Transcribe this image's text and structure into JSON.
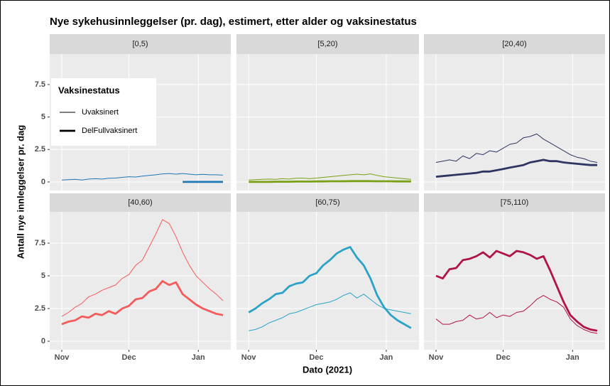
{
  "figure": {
    "title": "Nye sykehusinnleggelser (pr. dag), estimert, etter alder og vaksinestatus",
    "x_label": "Dato (2021)",
    "y_label": "Antall nye innleggelser pr. dag",
    "legend_title": "Vaksinestatus"
  },
  "chart_data": [
    {
      "type": "line",
      "title": "[0,5)",
      "x": [
        0,
        3,
        6,
        9,
        12,
        15,
        18,
        21,
        24,
        27,
        30,
        33,
        36,
        39,
        42,
        45,
        48,
        51,
        54,
        57,
        60,
        63,
        66,
        69,
        72
      ],
      "xlim": [
        -5.4,
        75.5
      ],
      "xticks": [
        {
          "value": 0,
          "label": "Nov"
        },
        {
          "value": 30,
          "label": "Dec"
        },
        {
          "value": 61,
          "label": "Jan"
        }
      ],
      "ylim": [
        -0.66,
        9.85
      ],
      "yticks": [
        0,
        2.5,
        5,
        7.5
      ],
      "grid": true,
      "series": [
        {
          "name": "Uvaksinert",
          "color": "#1f78b4",
          "values": [
            0.15,
            0.18,
            0.2,
            0.15,
            0.22,
            0.25,
            0.22,
            0.28,
            0.3,
            0.35,
            0.4,
            0.38,
            0.45,
            0.5,
            0.55,
            0.62,
            0.65,
            0.6,
            0.65,
            0.6,
            0.55,
            0.58,
            0.55,
            0.55,
            0.52
          ]
        },
        {
          "name": "DelFullvaksinert",
          "color": "#1f78b4",
          "values": [
            null,
            null,
            null,
            null,
            null,
            null,
            null,
            null,
            null,
            null,
            null,
            null,
            null,
            null,
            null,
            null,
            null,
            null,
            0,
            0,
            0,
            0,
            0,
            0,
            0
          ]
        }
      ]
    },
    {
      "type": "line",
      "title": "[5,20)",
      "x": [
        0,
        3,
        6,
        9,
        12,
        15,
        18,
        21,
        24,
        27,
        30,
        33,
        36,
        39,
        42,
        45,
        48,
        51,
        54,
        57,
        60,
        63,
        66,
        69,
        72
      ],
      "xlim": [
        -5.4,
        75.5
      ],
      "xticks": [
        {
          "value": 0,
          "label": "Nov"
        },
        {
          "value": 30,
          "label": "Dec"
        },
        {
          "value": 61,
          "label": "Jan"
        }
      ],
      "ylim": [
        -0.66,
        9.85
      ],
      "yticks": [
        0,
        2.5,
        5,
        7.5
      ],
      "grid": true,
      "series": [
        {
          "name": "Uvaksinert",
          "color": "#7aa116",
          "values": [
            0.15,
            0.18,
            0.2,
            0.22,
            0.2,
            0.25,
            0.22,
            0.28,
            0.3,
            0.25,
            0.3,
            0.35,
            0.4,
            0.45,
            0.5,
            0.55,
            0.6,
            0.55,
            0.62,
            0.5,
            0.4,
            0.35,
            0.3,
            0.25,
            0.2
          ]
        },
        {
          "name": "DelFullvaksinert",
          "color": "#7aa116",
          "values": [
            0,
            0,
            0,
            0,
            0.02,
            0.02,
            0.02,
            0.03,
            0.03,
            0.03,
            0.04,
            0.04,
            0.05,
            0.05,
            0.05,
            0.06,
            0.06,
            0.06,
            0.06,
            0.05,
            0.05,
            0.05,
            0.04,
            0.04,
            0.04
          ]
        }
      ]
    },
    {
      "type": "line",
      "title": "[20,40)",
      "x": [
        0,
        3,
        6,
        9,
        12,
        15,
        18,
        21,
        24,
        27,
        30,
        33,
        36,
        39,
        42,
        45,
        48,
        51,
        54,
        57,
        60,
        63,
        66,
        69,
        72
      ],
      "xlim": [
        -5.4,
        75.5
      ],
      "xticks": [
        {
          "value": 0,
          "label": "Nov"
        },
        {
          "value": 30,
          "label": "Dec"
        },
        {
          "value": 61,
          "label": "Jan"
        }
      ],
      "ylim": [
        -0.66,
        9.85
      ],
      "yticks": [
        0,
        2.5,
        5,
        7.5
      ],
      "grid": true,
      "series": [
        {
          "name": "Uvaksinert",
          "color": "#2e3561",
          "values": [
            1.5,
            1.6,
            1.7,
            1.6,
            2.0,
            1.8,
            2.2,
            2.1,
            2.4,
            2.3,
            2.6,
            2.9,
            3.0,
            3.4,
            3.5,
            3.7,
            3.3,
            3.0,
            2.7,
            2.4,
            2.1,
            1.9,
            1.8,
            1.6,
            1.5
          ]
        },
        {
          "name": "DelFullvaksinert",
          "color": "#2e3561",
          "values": [
            0.4,
            0.45,
            0.5,
            0.55,
            0.6,
            0.65,
            0.7,
            0.8,
            0.8,
            0.9,
            1.0,
            1.1,
            1.2,
            1.3,
            1.5,
            1.6,
            1.7,
            1.6,
            1.6,
            1.5,
            1.45,
            1.4,
            1.35,
            1.3,
            1.3
          ]
        }
      ]
    },
    {
      "type": "line",
      "title": "[40,60)",
      "x": [
        0,
        3,
        6,
        9,
        12,
        15,
        18,
        21,
        24,
        27,
        30,
        33,
        36,
        39,
        42,
        45,
        48,
        51,
        54,
        57,
        60,
        63,
        66,
        69,
        72
      ],
      "xlim": [
        -5.4,
        75.5
      ],
      "xticks": [
        {
          "value": 0,
          "label": "Nov"
        },
        {
          "value": 30,
          "label": "Dec"
        },
        {
          "value": 61,
          "label": "Jan"
        }
      ],
      "ylim": [
        -0.65,
        9.89
      ],
      "yticks": [
        0,
        2.5,
        5,
        7.5
      ],
      "grid": true,
      "series": [
        {
          "name": "Uvaksinert",
          "color": "#f45b5b",
          "values": [
            1.9,
            2.2,
            2.6,
            2.9,
            3.4,
            3.6,
            3.9,
            4.1,
            4.3,
            4.8,
            5.1,
            5.8,
            6.2,
            7.2,
            8.2,
            9.3,
            9.0,
            8.0,
            6.8,
            5.8,
            5.0,
            4.5,
            4.0,
            3.6,
            3.1
          ]
        },
        {
          "name": "DelFullvaksinert",
          "color": "#f45b5b",
          "values": [
            1.3,
            1.5,
            1.6,
            1.9,
            1.8,
            2.1,
            2.0,
            2.3,
            2.1,
            2.5,
            2.7,
            3.2,
            3.3,
            3.8,
            4.0,
            4.6,
            4.3,
            4.5,
            3.6,
            3.2,
            2.8,
            2.5,
            2.3,
            2.1,
            2.0
          ]
        }
      ]
    },
    {
      "type": "line",
      "title": "[60,75)",
      "x": [
        0,
        3,
        6,
        9,
        12,
        15,
        18,
        21,
        24,
        27,
        30,
        33,
        36,
        39,
        42,
        45,
        48,
        51,
        54,
        57,
        60,
        63,
        66,
        69,
        72
      ],
      "xlim": [
        -5.4,
        75.5
      ],
      "xticks": [
        {
          "value": 0,
          "label": "Nov"
        },
        {
          "value": 30,
          "label": "Dec"
        },
        {
          "value": 61,
          "label": "Jan"
        }
      ],
      "ylim": [
        -0.65,
        9.89
      ],
      "yticks": [
        0,
        2.5,
        5,
        7.5
      ],
      "grid": true,
      "series": [
        {
          "name": "Uvaksinert",
          "color": "#2aa3c7",
          "values": [
            0.8,
            0.9,
            1.1,
            1.4,
            1.6,
            1.8,
            2.1,
            2.2,
            2.4,
            2.6,
            2.8,
            2.9,
            3.0,
            3.2,
            3.5,
            3.7,
            3.3,
            3.6,
            3.2,
            2.8,
            2.5,
            2.4,
            2.3,
            2.2,
            2.1
          ]
        },
        {
          "name": "DelFullvaksinert",
          "color": "#2aa3c7",
          "values": [
            2.2,
            2.5,
            2.9,
            3.2,
            3.6,
            3.7,
            4.2,
            4.4,
            4.5,
            5.0,
            5.2,
            5.8,
            6.2,
            6.7,
            7.0,
            7.2,
            6.4,
            5.8,
            4.8,
            3.5,
            2.6,
            2.0,
            1.6,
            1.3,
            1.0
          ]
        }
      ]
    },
    {
      "type": "line",
      "title": "[75,110)",
      "x": [
        0,
        3,
        6,
        9,
        12,
        15,
        18,
        21,
        24,
        27,
        30,
        33,
        36,
        39,
        42,
        45,
        48,
        51,
        54,
        57,
        60,
        63,
        66,
        69,
        72
      ],
      "xlim": [
        -5.4,
        75.5
      ],
      "xticks": [
        {
          "value": 0,
          "label": "Nov"
        },
        {
          "value": 30,
          "label": "Dec"
        },
        {
          "value": 61,
          "label": "Jan"
        }
      ],
      "ylim": [
        -0.65,
        9.89
      ],
      "yticks": [
        0,
        2.5,
        5,
        7.5
      ],
      "grid": true,
      "series": [
        {
          "name": "Uvaksinert",
          "color": "#b0124a",
          "values": [
            1.7,
            1.3,
            1.3,
            1.5,
            1.6,
            2.0,
            1.7,
            1.8,
            2.2,
            1.8,
            2.0,
            1.9,
            2.2,
            2.3,
            2.7,
            3.2,
            3.5,
            3.2,
            3.0,
            2.6,
            1.7,
            1.2,
            0.9,
            0.7,
            0.6
          ]
        },
        {
          "name": "DelFullvaksinert",
          "color": "#b0124a",
          "values": [
            5.0,
            4.8,
            5.5,
            5.6,
            6.2,
            6.3,
            6.5,
            6.8,
            6.4,
            6.9,
            6.7,
            6.5,
            6.9,
            6.8,
            6.6,
            6.3,
            6.5,
            5.4,
            4.2,
            3.0,
            2.0,
            1.5,
            1.1,
            0.9,
            0.8
          ]
        }
      ]
    }
  ]
}
